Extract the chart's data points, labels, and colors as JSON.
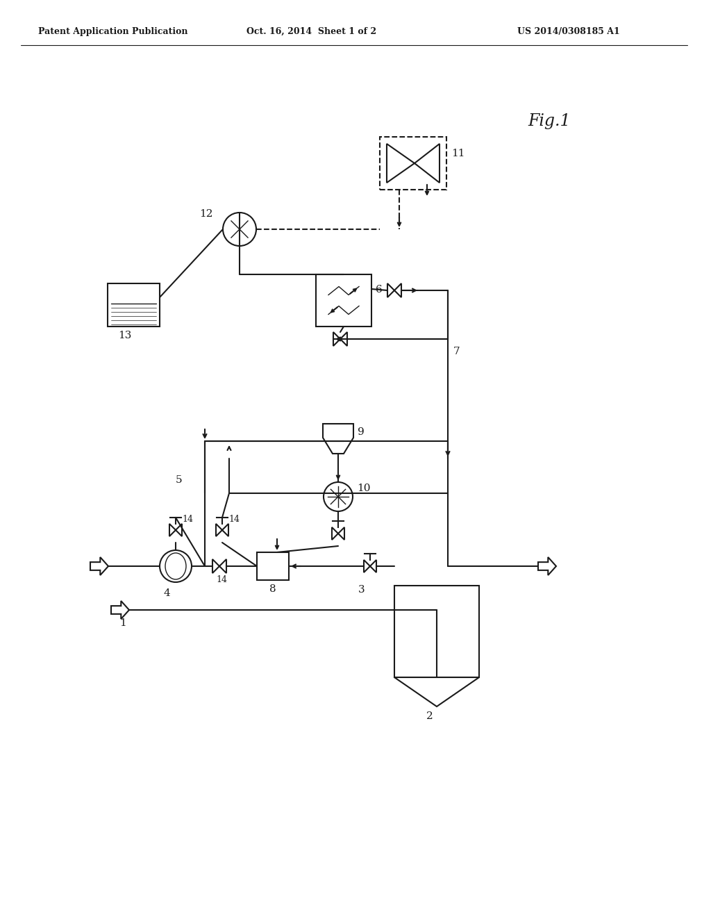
{
  "title": "Fig.1",
  "header_left": "Patent Application Publication",
  "header_center": "Oct. 16, 2014  Sheet 1 of 2",
  "header_right": "US 2014/0308185 A1",
  "bg_color": "#ffffff",
  "line_color": "#1a1a1a",
  "line_width": 1.5,
  "thin_line": 1.0
}
